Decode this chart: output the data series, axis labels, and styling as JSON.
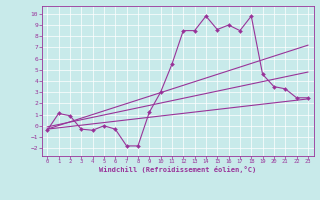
{
  "title": "",
  "xlabel": "Windchill (Refroidissement éolien,°C)",
  "ylabel": "",
  "background_color": "#c8eaea",
  "line_color": "#993399",
  "xlim": [
    -0.5,
    23.5
  ],
  "ylim": [
    -2.7,
    10.7
  ],
  "yticks": [
    -2,
    -1,
    0,
    1,
    2,
    3,
    4,
    5,
    6,
    7,
    8,
    9,
    10
  ],
  "xticks": [
    0,
    1,
    2,
    3,
    4,
    5,
    6,
    7,
    8,
    9,
    10,
    11,
    12,
    13,
    14,
    15,
    16,
    17,
    18,
    19,
    20,
    21,
    22,
    23
  ],
  "data_line": {
    "x": [
      0,
      1,
      2,
      3,
      4,
      5,
      6,
      7,
      8,
      9,
      10,
      11,
      12,
      13,
      14,
      15,
      16,
      17,
      18,
      19,
      20,
      21,
      22,
      23
    ],
    "y": [
      -0.4,
      1.1,
      0.9,
      -0.3,
      -0.4,
      0.0,
      -0.3,
      -1.8,
      -1.8,
      1.2,
      3.0,
      5.5,
      8.5,
      8.5,
      9.8,
      8.6,
      9.0,
      8.5,
      9.8,
      4.6,
      3.5,
      3.3,
      2.5,
      2.5
    ]
  },
  "line1": {
    "x": [
      0,
      23
    ],
    "y": [
      -0.3,
      7.2
    ]
  },
  "line2": {
    "x": [
      0,
      23
    ],
    "y": [
      -0.3,
      2.4
    ]
  },
  "line3": {
    "x": [
      0,
      23
    ],
    "y": [
      -0.1,
      4.8
    ]
  }
}
